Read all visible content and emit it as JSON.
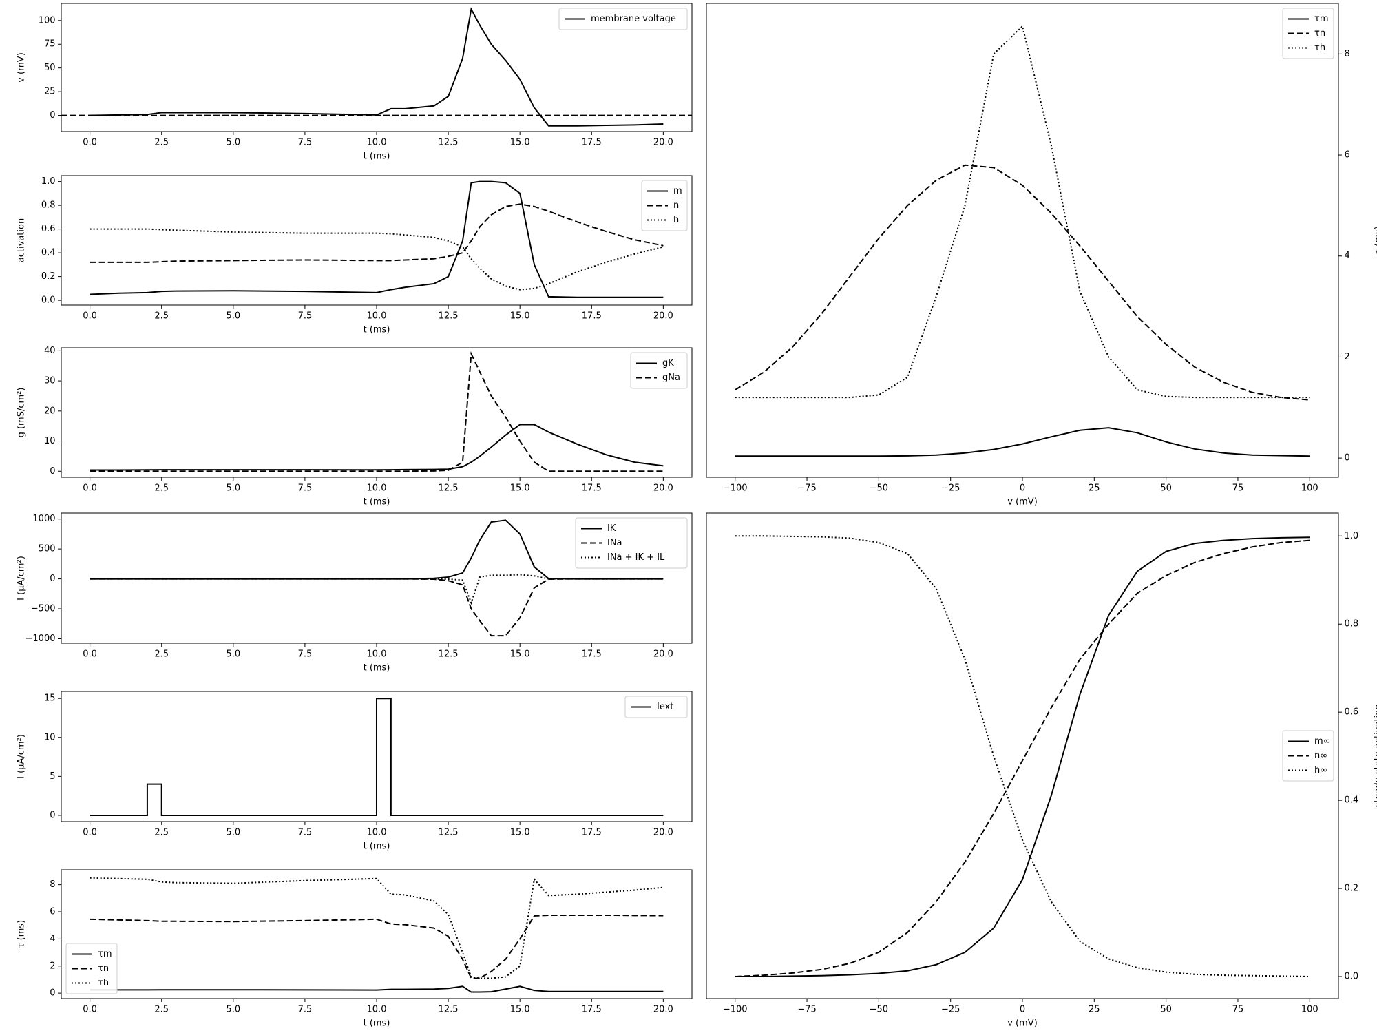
{
  "chart_data": [
    {
      "type": "line",
      "xlabel": "t (ms)",
      "ylabel": "v (mV)",
      "xlim": [
        -1,
        21
      ],
      "ylim": [
        -17,
        118
      ],
      "xticks": [
        {
          "value": 0,
          "label": "0.0"
        },
        2.5,
        {
          "value": 5,
          "label": "5.0"
        },
        7.5,
        {
          "value": 10,
          "label": "10.0"
        },
        12.5,
        {
          "value": 15,
          "label": "15.0"
        },
        17.5,
        {
          "value": 20,
          "label": "20.0"
        }
      ],
      "yticks": [
        0,
        25,
        50,
        75,
        100
      ],
      "legend": "upper right",
      "grid": false,
      "reference_line": {
        "value": 0,
        "style": "dashed"
      },
      "x": [
        0,
        1,
        2,
        2.5,
        3,
        5,
        7.5,
        10,
        10.5,
        11,
        12,
        12.5,
        13,
        13.3,
        13.6,
        14,
        14.5,
        15,
        15.5,
        16,
        17,
        18,
        19,
        20
      ],
      "series": [
        {
          "name": "membrane voltage",
          "color": "#000000",
          "style": "solid",
          "values": [
            0,
            0.5,
            1,
            3,
            3,
            3,
            2,
            0.5,
            7,
            7,
            10,
            20,
            60,
            112,
            95,
            75,
            58,
            38,
            8,
            -11,
            -11,
            -10.5,
            -10,
            -9
          ]
        }
      ]
    },
    {
      "type": "line",
      "xlabel": "t (ms)",
      "ylabel": "activation",
      "xlim": [
        -1,
        21
      ],
      "ylim": [
        -0.04,
        1.05
      ],
      "xticks": [
        {
          "value": 0,
          "label": "0.0"
        },
        2.5,
        {
          "value": 5,
          "label": "5.0"
        },
        7.5,
        {
          "value": 10,
          "label": "10.0"
        },
        12.5,
        {
          "value": 15,
          "label": "15.0"
        },
        17.5,
        {
          "value": 20,
          "label": "20.0"
        }
      ],
      "yticks": [
        {
          "value": 0,
          "label": "0.0"
        },
        0.2,
        0.4,
        0.6,
        0.8,
        {
          "value": 1,
          "label": "1.0"
        }
      ],
      "legend": "upper right",
      "grid": false,
      "x": [
        0,
        1,
        2,
        2.5,
        3,
        5,
        7.5,
        10,
        10.5,
        11,
        12,
        12.5,
        13,
        13.3,
        13.6,
        14,
        14.5,
        15,
        15.5,
        16,
        17,
        18,
        19,
        20
      ],
      "series": [
        {
          "name": "m",
          "color": "#000000",
          "style": "solid",
          "values": [
            0.05,
            0.06,
            0.065,
            0.075,
            0.078,
            0.08,
            0.075,
            0.065,
            0.09,
            0.11,
            0.14,
            0.2,
            0.5,
            0.99,
            1.0,
            1.0,
            0.99,
            0.9,
            0.3,
            0.03,
            0.025,
            0.025,
            0.025,
            0.025
          ]
        },
        {
          "name": "n",
          "color": "#000000",
          "style": "dashed",
          "values": [
            0.32,
            0.32,
            0.32,
            0.325,
            0.33,
            0.335,
            0.34,
            0.335,
            0.335,
            0.34,
            0.35,
            0.37,
            0.4,
            0.5,
            0.62,
            0.72,
            0.79,
            0.81,
            0.79,
            0.75,
            0.66,
            0.58,
            0.51,
            0.46
          ]
        },
        {
          "name": "h",
          "color": "#000000",
          "style": "dotted",
          "values": [
            0.6,
            0.6,
            0.6,
            0.595,
            0.59,
            0.575,
            0.565,
            0.565,
            0.56,
            0.55,
            0.53,
            0.5,
            0.45,
            0.35,
            0.27,
            0.18,
            0.12,
            0.09,
            0.1,
            0.14,
            0.24,
            0.32,
            0.39,
            0.45
          ]
        }
      ]
    },
    {
      "type": "line",
      "xlabel": "t (ms)",
      "ylabel": "g (mS/cm²)",
      "xlim": [
        -1,
        21
      ],
      "ylim": [
        -2,
        41
      ],
      "xticks": [
        {
          "value": 0,
          "label": "0.0"
        },
        2.5,
        {
          "value": 5,
          "label": "5.0"
        },
        7.5,
        {
          "value": 10,
          "label": "10.0"
        },
        12.5,
        {
          "value": 15,
          "label": "15.0"
        },
        17.5,
        {
          "value": 20,
          "label": "20.0"
        }
      ],
      "yticks": [
        0,
        10,
        20,
        30,
        40
      ],
      "legend": "upper right",
      "grid": false,
      "x": [
        0,
        1,
        2,
        2.5,
        3,
        5,
        7.5,
        10,
        10.5,
        11,
        12,
        12.5,
        13,
        13.3,
        13.6,
        14,
        14.5,
        15,
        15.5,
        16,
        17,
        18,
        19,
        20
      ],
      "series": [
        {
          "name": "gK",
          "color": "#000000",
          "style": "solid",
          "values": [
            0.4,
            0.4,
            0.45,
            0.5,
            0.5,
            0.5,
            0.5,
            0.45,
            0.5,
            0.55,
            0.6,
            0.7,
            1.5,
            3,
            5,
            8,
            12,
            15.5,
            15.5,
            13,
            9,
            5.5,
            3,
            1.8
          ]
        },
        {
          "name": "gNa",
          "color": "#000000",
          "style": "dashed",
          "values": [
            0,
            0,
            0,
            0,
            0,
            0,
            0,
            0,
            0,
            0,
            0.1,
            0.3,
            3,
            39,
            33,
            25,
            18,
            10,
            3,
            0,
            0,
            0,
            0,
            0
          ]
        }
      ]
    },
    {
      "type": "line",
      "xlabel": "t (ms)",
      "ylabel": "I (μA/cm²)",
      "xlim": [
        -1,
        21
      ],
      "ylim": [
        -1075,
        1100
      ],
      "xticks": [
        {
          "value": 0,
          "label": "0.0"
        },
        2.5,
        {
          "value": 5,
          "label": "5.0"
        },
        7.5,
        {
          "value": 10,
          "label": "10.0"
        },
        12.5,
        {
          "value": 15,
          "label": "15.0"
        },
        17.5,
        {
          "value": 20,
          "label": "20.0"
        }
      ],
      "yticks": [
        {
          "value": -1000,
          "label": "−1000"
        },
        {
          "value": -500,
          "label": "−500"
        },
        0,
        500,
        1000
      ],
      "legend": "upper right",
      "grid": false,
      "x": [
        0,
        1,
        2,
        2.5,
        3,
        5,
        7.5,
        10,
        10.5,
        11,
        12,
        12.5,
        13,
        13.3,
        13.6,
        14,
        14.5,
        15,
        15.5,
        16,
        17,
        18,
        19,
        20
      ],
      "series": [
        {
          "name": "IK",
          "color": "#000000",
          "style": "solid",
          "values": [
            0,
            0,
            0,
            0,
            0,
            0,
            0,
            0,
            0,
            0,
            10,
            30,
            100,
            350,
            650,
            950,
            980,
            750,
            200,
            5,
            0,
            0,
            0,
            0
          ]
        },
        {
          "name": "INa",
          "color": "#000000",
          "style": "dashed",
          "values": [
            0,
            0,
            0,
            0,
            0,
            0,
            0,
            0,
            0,
            0,
            -5,
            -30,
            -100,
            -500,
            -700,
            -950,
            -950,
            -650,
            -150,
            -5,
            0,
            0,
            0,
            0
          ]
        },
        {
          "name": "INa + IK + IL",
          "color": "#000000",
          "style": "dotted",
          "values": [
            0,
            0,
            0,
            0,
            0,
            0,
            0,
            0,
            0,
            0,
            0,
            -5,
            -20,
            -400,
            30,
            60,
            60,
            70,
            50,
            0,
            0,
            0,
            0,
            0
          ]
        }
      ]
    },
    {
      "type": "line",
      "xlabel": "t (ms)",
      "ylabel": "I (μA/cm²)",
      "xlim": [
        -1,
        21
      ],
      "ylim": [
        -0.8,
        15.9
      ],
      "xticks": [
        {
          "value": 0,
          "label": "0.0"
        },
        2.5,
        {
          "value": 5,
          "label": "5.0"
        },
        7.5,
        {
          "value": 10,
          "label": "10.0"
        },
        12.5,
        {
          "value": 15,
          "label": "15.0"
        },
        17.5,
        {
          "value": 20,
          "label": "20.0"
        }
      ],
      "yticks": [
        0,
        5,
        10,
        15
      ],
      "legend": "upper right",
      "grid": false,
      "x": [
        0,
        2,
        2,
        2.5,
        2.5,
        10,
        10,
        10.5,
        10.5,
        20
      ],
      "series": [
        {
          "name": "Iext",
          "color": "#000000",
          "style": "solid",
          "values": [
            0,
            0,
            4,
            4,
            0,
            0,
            15,
            15,
            0,
            0
          ]
        }
      ]
    },
    {
      "type": "line",
      "xlabel": "t (ms)",
      "ylabel": "τ (ms)",
      "xlim": [
        -1,
        21
      ],
      "ylim": [
        -0.4,
        9.1
      ],
      "xticks": [
        {
          "value": 0,
          "label": "0.0"
        },
        2.5,
        {
          "value": 5,
          "label": "5.0"
        },
        7.5,
        {
          "value": 10,
          "label": "10.0"
        },
        12.5,
        {
          "value": 15,
          "label": "15.0"
        },
        17.5,
        {
          "value": 20,
          "label": "20.0"
        }
      ],
      "yticks": [
        0,
        2,
        4,
        6,
        8
      ],
      "legend": "lower left",
      "grid": false,
      "x": [
        0,
        1,
        2,
        2.5,
        3,
        5,
        7.5,
        10,
        10.5,
        11,
        12,
        12.5,
        13,
        13.3,
        13.6,
        14,
        14.5,
        15,
        15.5,
        16,
        17,
        18,
        19,
        20
      ],
      "series": [
        {
          "name": "τm",
          "color": "#000000",
          "style": "solid",
          "values": [
            0.24,
            0.24,
            0.24,
            0.25,
            0.25,
            0.25,
            0.24,
            0.23,
            0.28,
            0.28,
            0.3,
            0.35,
            0.5,
            0.08,
            0.08,
            0.1,
            0.3,
            0.5,
            0.2,
            0.12,
            0.12,
            0.12,
            0.12,
            0.12
          ]
        },
        {
          "name": "τn",
          "color": "#000000",
          "style": "dashed",
          "values": [
            5.45,
            5.4,
            5.35,
            5.3,
            5.3,
            5.28,
            5.35,
            5.45,
            5.1,
            5.05,
            4.8,
            4.2,
            2.5,
            1.1,
            1.1,
            1.6,
            2.5,
            4,
            5.7,
            5.75,
            5.75,
            5.75,
            5.73,
            5.72
          ]
        },
        {
          "name": "τh",
          "color": "#000000",
          "style": "dotted",
          "values": [
            8.5,
            8.45,
            8.4,
            8.2,
            8.15,
            8.1,
            8.3,
            8.45,
            7.3,
            7.25,
            6.8,
            5.8,
            3,
            1.2,
            1.1,
            1.1,
            1.2,
            2,
            8.4,
            7.2,
            7.3,
            7.45,
            7.6,
            7.8
          ]
        }
      ]
    },
    {
      "type": "line",
      "xlabel": "v (mV)",
      "ylabel": "τ (ms)",
      "yaxis_side": "right",
      "xlim": [
        -110,
        110
      ],
      "ylim": [
        -0.38,
        9.0
      ],
      "xticks": [
        {
          "value": -100,
          "label": "−100"
        },
        {
          "value": -75,
          "label": "−75"
        },
        {
          "value": -50,
          "label": "−50"
        },
        {
          "value": -25,
          "label": "−25"
        },
        0,
        25,
        50,
        75,
        100
      ],
      "yticks": [
        0,
        2,
        4,
        6,
        8
      ],
      "legend": "upper right",
      "grid": false,
      "x": [
        -100,
        -90,
        -80,
        -70,
        -60,
        -50,
        -40,
        -30,
        -20,
        -10,
        0,
        10,
        20,
        30,
        40,
        50,
        60,
        70,
        80,
        90,
        100
      ],
      "series": [
        {
          "name": "τm",
          "color": "#000000",
          "style": "solid",
          "values": [
            0.04,
            0.04,
            0.04,
            0.04,
            0.04,
            0.04,
            0.045,
            0.06,
            0.1,
            0.17,
            0.28,
            0.42,
            0.55,
            0.6,
            0.5,
            0.32,
            0.18,
            0.1,
            0.06,
            0.05,
            0.04
          ]
        },
        {
          "name": "τn",
          "color": "#000000",
          "style": "dashed",
          "values": [
            1.35,
            1.7,
            2.2,
            2.85,
            3.6,
            4.35,
            5.0,
            5.5,
            5.8,
            5.75,
            5.4,
            4.85,
            4.2,
            3.5,
            2.8,
            2.25,
            1.8,
            1.5,
            1.3,
            1.2,
            1.15
          ]
        },
        {
          "name": "τh",
          "color": "#000000",
          "style": "dotted",
          "values": [
            1.2,
            1.2,
            1.2,
            1.2,
            1.2,
            1.25,
            1.6,
            3.2,
            5.0,
            8.0,
            8.55,
            6.2,
            3.3,
            2.0,
            1.35,
            1.22,
            1.2,
            1.2,
            1.2,
            1.2,
            1.2
          ]
        }
      ]
    },
    {
      "type": "line",
      "xlabel": "v (mV)",
      "ylabel": "steady-state activation",
      "yaxis_side": "right",
      "xlim": [
        -110,
        110
      ],
      "ylim": [
        -0.05,
        1.052
      ],
      "xticks": [
        {
          "value": -100,
          "label": "−100"
        },
        {
          "value": -75,
          "label": "−75"
        },
        {
          "value": -50,
          "label": "−50"
        },
        {
          "value": -25,
          "label": "−25"
        },
        0,
        25,
        50,
        75,
        100
      ],
      "yticks": [
        {
          "value": 0,
          "label": "0.0"
        },
        0.2,
        0.4,
        0.6,
        0.8,
        {
          "value": 1,
          "label": "1.0"
        }
      ],
      "legend": "center right",
      "grid": false,
      "x": [
        -100,
        -90,
        -80,
        -70,
        -60,
        -50,
        -40,
        -30,
        -20,
        -10,
        0,
        10,
        20,
        30,
        40,
        50,
        60,
        70,
        80,
        90,
        100
      ],
      "series": [
        {
          "name": "m∞",
          "color": "#000000",
          "style": "solid",
          "values": [
            0,
            0,
            0.001,
            0.002,
            0.004,
            0.007,
            0.013,
            0.027,
            0.055,
            0.11,
            0.22,
            0.41,
            0.64,
            0.82,
            0.92,
            0.965,
            0.983,
            0.99,
            0.994,
            0.996,
            0.997
          ]
        },
        {
          "name": "n∞",
          "color": "#000000",
          "style": "dashed",
          "values": [
            0,
            0.003,
            0.008,
            0.016,
            0.03,
            0.055,
            0.1,
            0.17,
            0.26,
            0.37,
            0.49,
            0.61,
            0.72,
            0.8,
            0.87,
            0.91,
            0.94,
            0.96,
            0.975,
            0.985,
            0.99
          ]
        },
        {
          "name": "h∞",
          "color": "#000000",
          "style": "dotted",
          "values": [
            1,
            1,
            0.999,
            0.998,
            0.995,
            0.985,
            0.96,
            0.88,
            0.72,
            0.5,
            0.31,
            0.17,
            0.08,
            0.04,
            0.02,
            0.01,
            0.005,
            0.003,
            0.002,
            0.001,
            0
          ]
        }
      ]
    }
  ]
}
